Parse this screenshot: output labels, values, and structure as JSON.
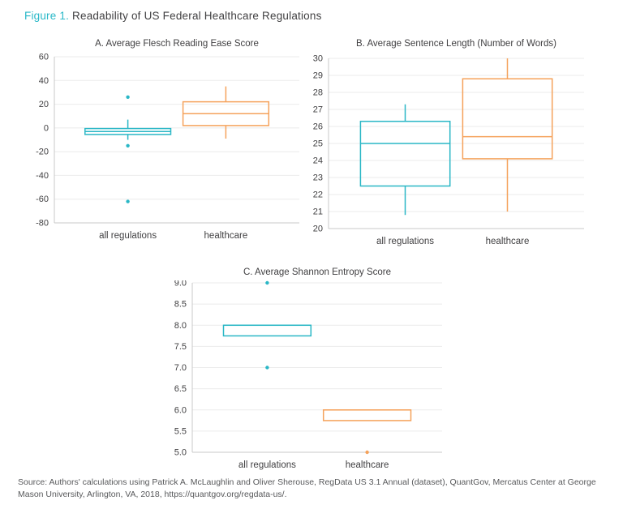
{
  "figure": {
    "label": "Figure 1.",
    "title": "Readability of US Federal Healthcare Regulations"
  },
  "source": "Source: Authors' calculations using Patrick A. McLaughlin and Oliver Sherouse, RegData US 3.1 Annual (dataset), QuantGov, Mercatus Center at George Mason University, Arlington, VA, 2018, https://quantgov.org/regdata-us/.",
  "colors": {
    "teal": "#2ab7c6",
    "orange": "#f5a25b",
    "grid": "#ebebeb",
    "axis": "#c9c9c9",
    "text": "#414042"
  },
  "chart_data": [
    {
      "type": "boxplot",
      "panel": "A",
      "title": "A. Average Flesch Reading Ease Score",
      "categories": [
        "all regulations",
        "healthcare"
      ],
      "ylim": [
        -80,
        60
      ],
      "ytick_step": 20,
      "ytick_decimals": 0,
      "grid": true,
      "legend": "none",
      "series": [
        {
          "name": "all regulations",
          "color": "teal",
          "whisker_low": -10,
          "q1": -5.5,
          "median": -3,
          "q3": -0.5,
          "whisker_high": 7,
          "outliers": [
            26,
            -15,
            -62
          ]
        },
        {
          "name": "healthcare",
          "color": "orange",
          "whisker_low": -9,
          "q1": 2,
          "median": 12,
          "q3": 22,
          "whisker_high": 35,
          "outliers": []
        }
      ]
    },
    {
      "type": "boxplot",
      "panel": "B",
      "title": "B. Average Sentence Length (Number of Words)",
      "categories": [
        "all regulations",
        "healthcare"
      ],
      "ylim": [
        20,
        30
      ],
      "ytick_step": 1,
      "ytick_decimals": 0,
      "grid": true,
      "legend": "none",
      "series": [
        {
          "name": "all regulations",
          "color": "teal",
          "whisker_low": 20.8,
          "q1": 22.5,
          "median": 25.0,
          "q3": 26.3,
          "whisker_high": 27.3,
          "outliers": []
        },
        {
          "name": "healthcare",
          "color": "orange",
          "whisker_low": 21.0,
          "q1": 24.1,
          "median": 25.4,
          "q3": 28.8,
          "whisker_high": 30.0,
          "outliers": []
        }
      ]
    },
    {
      "type": "boxplot",
      "panel": "C",
      "title": "C. Average Shannon Entropy Score",
      "categories": [
        "all regulations",
        "healthcare"
      ],
      "ylim": [
        5.0,
        9.0
      ],
      "ytick_step": 0.5,
      "ytick_decimals": 1,
      "grid": true,
      "legend": "none",
      "series": [
        {
          "name": "all regulations",
          "color": "teal",
          "whisker_low": null,
          "q1": 7.75,
          "median": 8.0,
          "q3": 8.0,
          "whisker_high": null,
          "outliers": [
            9.0,
            7.0
          ]
        },
        {
          "name": "healthcare",
          "color": "orange",
          "whisker_low": null,
          "q1": 5.75,
          "median": 6.0,
          "q3": 6.0,
          "whisker_high": null,
          "outliers": [
            5.0
          ]
        }
      ]
    }
  ]
}
